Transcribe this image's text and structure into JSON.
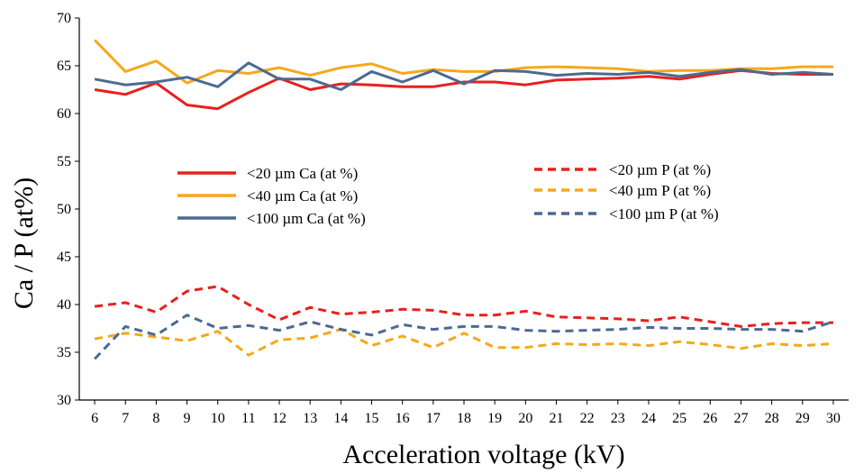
{
  "chart_data": {
    "type": "line",
    "xlabel": "Acceleration voltage (kV)",
    "ylabel": "Ca / P (at%)",
    "xlim": [
      6,
      30
    ],
    "ylim": [
      30,
      70
    ],
    "yticks": [
      30,
      35,
      40,
      45,
      50,
      55,
      60,
      65,
      70
    ],
    "grid": false,
    "legend": "center, two columns",
    "x": [
      6,
      7,
      8,
      9,
      10,
      11,
      12,
      13,
      14,
      15,
      16,
      17,
      18,
      19,
      20,
      21,
      22,
      23,
      24,
      25,
      26,
      27,
      28,
      29,
      30
    ],
    "series": [
      {
        "name": "<20 µm Ca (at %)",
        "color": "#e8201e",
        "dash": "solid",
        "values": [
          62.5,
          62.0,
          63.2,
          60.9,
          60.5,
          62.2,
          63.7,
          62.5,
          63.1,
          63.0,
          62.8,
          62.8,
          63.3,
          63.3,
          63.0,
          63.5,
          63.6,
          63.7,
          63.9,
          63.6,
          64.1,
          64.5,
          64.2,
          64.1,
          64.1
        ]
      },
      {
        "name": "<40 µm Ca (at %)",
        "color": "#f5a81c",
        "dash": "solid",
        "values": [
          67.7,
          64.4,
          65.5,
          63.2,
          64.5,
          64.2,
          64.8,
          64.0,
          64.8,
          65.2,
          64.2,
          64.6,
          64.4,
          64.4,
          64.8,
          64.9,
          64.8,
          64.7,
          64.4,
          64.5,
          64.5,
          64.7,
          64.7,
          64.9,
          64.9
        ]
      },
      {
        "name": "<100 µm Ca (at %)",
        "color": "#4b6a92",
        "dash": "solid",
        "values": [
          63.6,
          63.0,
          63.3,
          63.8,
          62.8,
          65.3,
          63.6,
          63.6,
          62.5,
          64.4,
          63.3,
          64.5,
          63.1,
          64.5,
          64.4,
          64.0,
          64.2,
          64.1,
          64.3,
          63.9,
          64.3,
          64.6,
          64.1,
          64.3,
          64.1
        ]
      },
      {
        "name": "<20 µm P (at %)",
        "color": "#e8201e",
        "dash": "dashed",
        "values": [
          39.8,
          40.2,
          39.2,
          41.4,
          41.9,
          40.0,
          38.4,
          39.7,
          39.0,
          39.2,
          39.5,
          39.4,
          38.9,
          38.9,
          39.3,
          38.7,
          38.6,
          38.5,
          38.3,
          38.7,
          38.2,
          37.7,
          38.0,
          38.1,
          38.1
        ]
      },
      {
        "name": "<40 µm P (at %)",
        "color": "#f5a81c",
        "dash": "dashed",
        "values": [
          36.4,
          37.0,
          36.6,
          36.2,
          37.2,
          34.7,
          36.3,
          36.5,
          37.4,
          35.7,
          36.7,
          35.5,
          37.0,
          35.5,
          35.5,
          35.9,
          35.8,
          35.9,
          35.7,
          36.1,
          35.8,
          35.4,
          35.9,
          35.7,
          35.9
        ]
      },
      {
        "name": "<100 µm P (at %)",
        "color": "#4b6a92",
        "dash": "dashed",
        "values": [
          34.3,
          37.7,
          36.8,
          38.9,
          37.5,
          37.8,
          37.3,
          38.2,
          37.4,
          36.8,
          37.9,
          37.4,
          37.7,
          37.7,
          37.3,
          37.2,
          37.3,
          37.4,
          37.6,
          37.5,
          37.5,
          37.4,
          37.4,
          37.2,
          38.2
        ]
      }
    ]
  }
}
